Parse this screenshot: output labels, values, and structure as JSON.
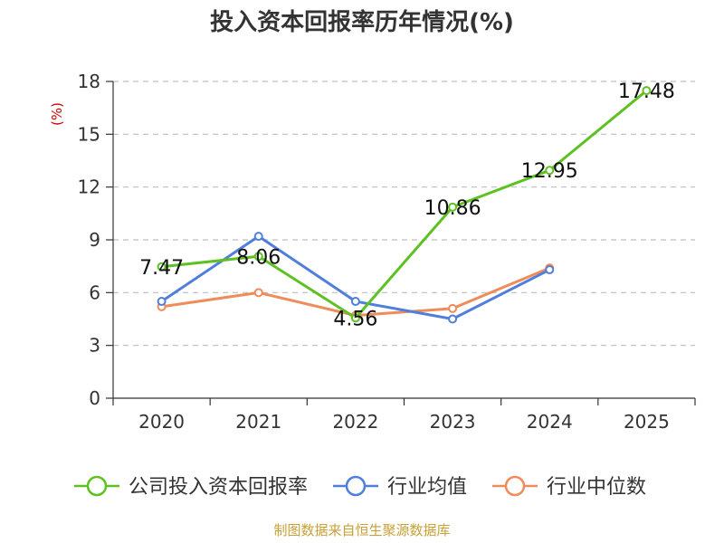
{
  "chart_data": {
    "type": "line",
    "title": "投入资本回报率历年情况(%)",
    "ylabel": "(%)",
    "xlabel": "",
    "categories": [
      "2020",
      "2021",
      "2022",
      "2023",
      "2024",
      "2025"
    ],
    "ylim": [
      0,
      18
    ],
    "yticks": [
      0,
      3,
      6,
      9,
      12,
      15,
      18
    ],
    "grid": true,
    "legend_position": "bottom",
    "series": [
      {
        "name": "公司投入资本回报率",
        "color": "#5ec122",
        "values": [
          7.47,
          8.06,
          4.56,
          10.86,
          12.95,
          17.48
        ],
        "labels": [
          "7.47",
          "8.06",
          "4.56",
          "10.86",
          "12.95",
          "17.48"
        ]
      },
      {
        "name": "行业均值",
        "color": "#4f7fdb",
        "values": [
          5.5,
          9.2,
          5.5,
          4.5,
          7.3,
          null
        ]
      },
      {
        "name": "行业中位数",
        "color": "#f08b5a",
        "values": [
          5.2,
          6.0,
          4.7,
          5.1,
          7.4,
          null
        ]
      }
    ]
  },
  "footer": {
    "source": "制图数据来自恒生聚源数据库"
  },
  "colors": {
    "axis": "#333333",
    "grid": "#bfbfbf",
    "ylabel": "#cc0000",
    "source": "#c8a035",
    "title": "#333333"
  }
}
